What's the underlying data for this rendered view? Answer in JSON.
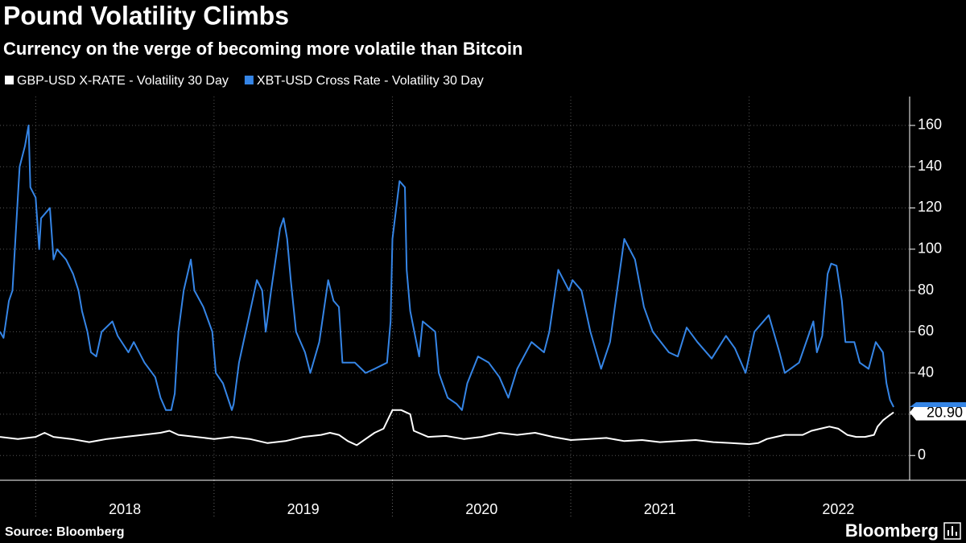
{
  "chart_data": {
    "type": "line",
    "title": "Pound Volatility Climbs",
    "subtitle": "Currency on the verge of becoming more volatile than Bitcoin",
    "source": "Source: Bloomberg",
    "brand": "Bloomberg",
    "xlim": [
      2017.8,
      2022.9
    ],
    "xticks": [
      2018,
      2019,
      2020,
      2021,
      2022
    ],
    "ylim": [
      -12,
      174
    ],
    "yticks": [
      0,
      20,
      40,
      60,
      80,
      100,
      120,
      140,
      160
    ],
    "grid": true,
    "series": [
      {
        "name": "GBP-USD X-RATE - Volatility 30 Day",
        "color": "#ffffff",
        "last_value_label": "20.90",
        "x": [
          2017.8,
          2017.9,
          2018.0,
          2018.05,
          2018.1,
          2018.2,
          2018.3,
          2018.4,
          2018.5,
          2018.6,
          2018.7,
          2018.75,
          2018.8,
          2018.9,
          2019.0,
          2019.1,
          2019.2,
          2019.3,
          2019.4,
          2019.5,
          2019.6,
          2019.65,
          2019.7,
          2019.75,
          2019.8,
          2019.85,
          2019.9,
          2019.95,
          2020.0,
          2020.05,
          2020.1,
          2020.12,
          2020.2,
          2020.3,
          2020.4,
          2020.5,
          2020.6,
          2020.7,
          2020.8,
          2020.9,
          2021.0,
          2021.1,
          2021.2,
          2021.3,
          2021.4,
          2021.5,
          2021.6,
          2021.7,
          2021.8,
          2021.9,
          2022.0,
          2022.05,
          2022.1,
          2022.15,
          2022.2,
          2022.3,
          2022.35,
          2022.4,
          2022.45,
          2022.5,
          2022.55,
          2022.6,
          2022.65,
          2022.7,
          2022.72,
          2022.75,
          2022.78,
          2022.81
        ],
        "values": [
          9,
          8,
          9,
          11,
          9,
          8,
          6.5,
          8,
          9,
          10,
          11,
          12,
          10,
          9,
          8,
          9,
          8,
          6,
          7,
          9,
          10,
          11,
          10,
          7,
          5,
          8,
          11,
          13,
          22,
          22,
          20,
          12,
          9,
          9.5,
          8,
          9,
          11,
          10,
          11,
          9,
          7.5,
          8,
          8.5,
          7,
          7.5,
          6.5,
          7,
          7.5,
          6.5,
          6,
          5.5,
          6,
          8,
          9,
          10,
          10,
          12,
          13,
          14,
          13,
          10,
          9,
          9,
          10,
          14,
          17,
          19,
          20.9
        ]
      },
      {
        "name": "XBT-USD Cross Rate - Volatility 30 Day",
        "color": "#3585e6",
        "x": [
          2017.8,
          2017.82,
          2017.85,
          2017.87,
          2017.89,
          2017.91,
          2017.94,
          2017.96,
          2017.97,
          2018.0,
          2018.02,
          2018.03,
          2018.08,
          2018.1,
          2018.12,
          2018.17,
          2018.21,
          2018.24,
          2018.26,
          2018.29,
          2018.31,
          2018.34,
          2018.37,
          2018.43,
          2018.46,
          2018.52,
          2018.55,
          2018.61,
          2018.67,
          2018.7,
          2018.73,
          2018.76,
          2018.78,
          2018.8,
          2018.83,
          2018.87,
          2018.89,
          2018.94,
          2018.99,
          2019.01,
          2019.05,
          2019.1,
          2019.11,
          2019.14,
          2019.19,
          2019.24,
          2019.27,
          2019.29,
          2019.32,
          2019.37,
          2019.39,
          2019.41,
          2019.43,
          2019.46,
          2019.51,
          2019.54,
          2019.59,
          2019.64,
          2019.67,
          2019.7,
          2019.72,
          2019.79,
          2019.85,
          2019.9,
          2019.97,
          2019.99,
          2020.0,
          2020.04,
          2020.07,
          2020.08,
          2020.1,
          2020.15,
          2020.17,
          2020.24,
          2020.26,
          2020.31,
          2020.36,
          2020.39,
          2020.42,
          2020.48,
          2020.54,
          2020.6,
          2020.65,
          2020.7,
          2020.78,
          2020.85,
          2020.88,
          2020.93,
          2020.99,
          2021.01,
          2021.06,
          2021.11,
          2021.17,
          2021.22,
          2021.26,
          2021.3,
          2021.36,
          2021.41,
          2021.46,
          2021.55,
          2021.6,
          2021.65,
          2021.71,
          2021.79,
          2021.87,
          2021.92,
          2021.98,
          2022.03,
          2022.11,
          2022.17,
          2022.2,
          2022.28,
          2022.36,
          2022.38,
          2022.41,
          2022.44,
          2022.46,
          2022.49,
          2022.52,
          2022.54,
          2022.59,
          2022.62,
          2022.67,
          2022.71,
          2022.75,
          2022.77,
          2022.79,
          2022.81
        ],
        "values": [
          60,
          57,
          75,
          80,
          110,
          140,
          150,
          160,
          130,
          125,
          100,
          115,
          120,
          95,
          100,
          95,
          88,
          80,
          70,
          60,
          50,
          48,
          60,
          65,
          58,
          50,
          55,
          45,
          38,
          28,
          22,
          22,
          30,
          60,
          80,
          95,
          80,
          72,
          60,
          40,
          35,
          22,
          25,
          45,
          65,
          85,
          80,
          60,
          80,
          110,
          115,
          105,
          85,
          60,
          50,
          40,
          55,
          85,
          75,
          72,
          45,
          45,
          40,
          42,
          45,
          65,
          105,
          133,
          130,
          90,
          70,
          48,
          65,
          60,
          40,
          28,
          25,
          22,
          35,
          48,
          45,
          38,
          28,
          42,
          55,
          50,
          60,
          90,
          80,
          85,
          80,
          60,
          42,
          55,
          80,
          105,
          95,
          72,
          60,
          50,
          48,
          62,
          55,
          47,
          58,
          52,
          40,
          60,
          68,
          50,
          40,
          45,
          65,
          50,
          58,
          88,
          93,
          92,
          75,
          55,
          55,
          45,
          42,
          55,
          50,
          35,
          27,
          23.5
        ]
      }
    ]
  }
}
